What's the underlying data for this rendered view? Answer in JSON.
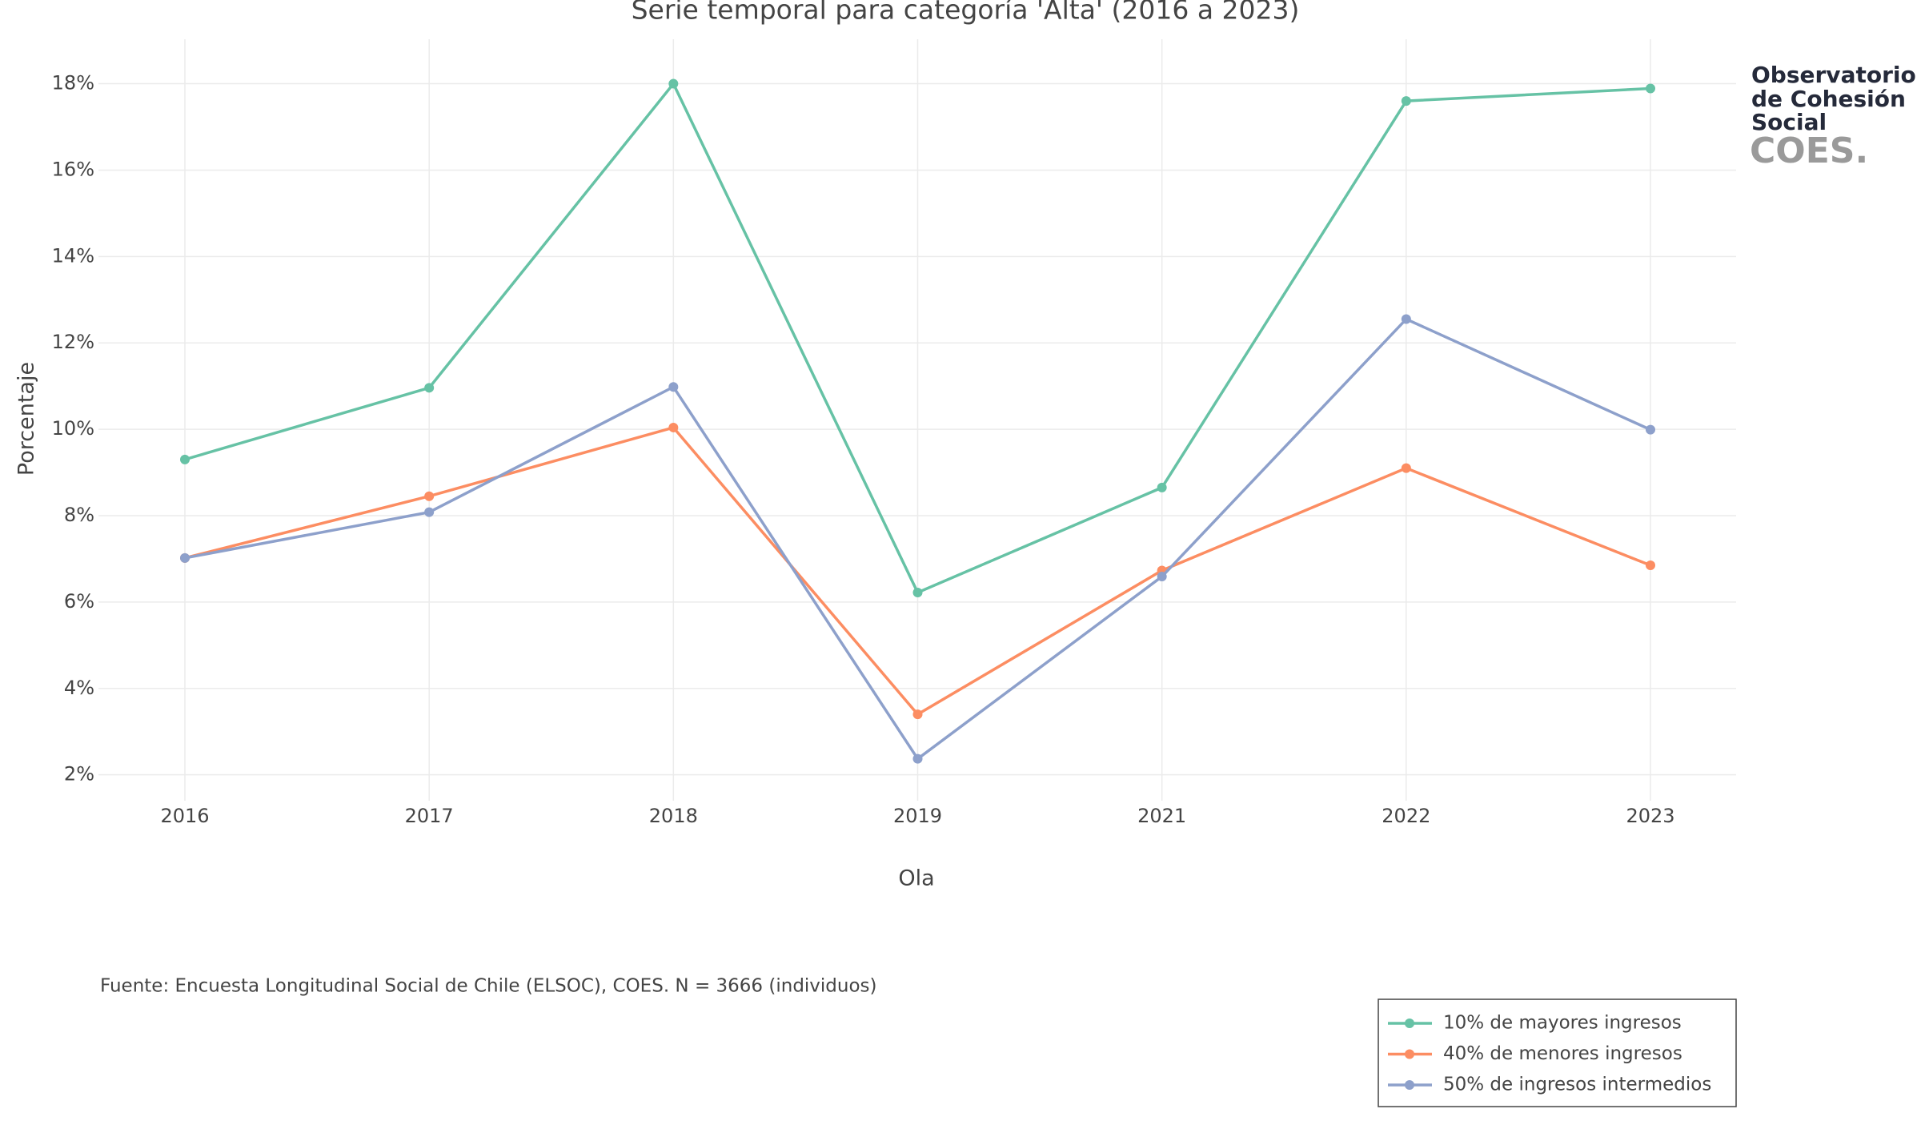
{
  "chart_data": {
    "type": "line",
    "title": "Serie temporal para categoría 'Alta' (2016 a 2023)",
    "x_label": "Ola",
    "y_label": "Porcentaje",
    "caption": "Fuente: Encuesta Longitudinal Social de Chile (ELSOC), COES. N = 3666 (individuos)",
    "categories": [
      "2016",
      "2017",
      "2018",
      "2019",
      "2021",
      "2022",
      "2023"
    ],
    "series": [
      {
        "name": "10% de mayores ingresos",
        "color": "#66c2a5",
        "values": [
          9.3,
          10.96,
          18.0,
          6.22,
          8.65,
          17.6,
          17.89
        ]
      },
      {
        "name": "40% de menores ingresos",
        "color": "#fc8d62",
        "values": [
          7.02,
          8.45,
          10.04,
          3.4,
          6.73,
          9.1,
          6.85
        ]
      },
      {
        "name": "50% de ingresos intermedios",
        "color": "#8da0cb",
        "values": [
          7.02,
          8.08,
          10.98,
          2.37,
          6.59,
          12.55,
          9.99
        ]
      }
    ],
    "ylim": [
      1.4,
      19.03
    ],
    "yticks": [
      {
        "value": 2,
        "label": "2%"
      },
      {
        "value": 4,
        "label": "4%"
      },
      {
        "value": 6,
        "label": "6%"
      },
      {
        "value": 8,
        "label": "8%"
      },
      {
        "value": 10,
        "label": "10%"
      },
      {
        "value": 12,
        "label": "12%"
      },
      {
        "value": 14,
        "label": "14%"
      },
      {
        "value": 16,
        "label": "16%"
      },
      {
        "value": 18,
        "label": "18%"
      }
    ],
    "grid": true,
    "logo": [
      "Observatorio",
      "de Cohesión",
      "Social",
      "COES."
    ]
  }
}
